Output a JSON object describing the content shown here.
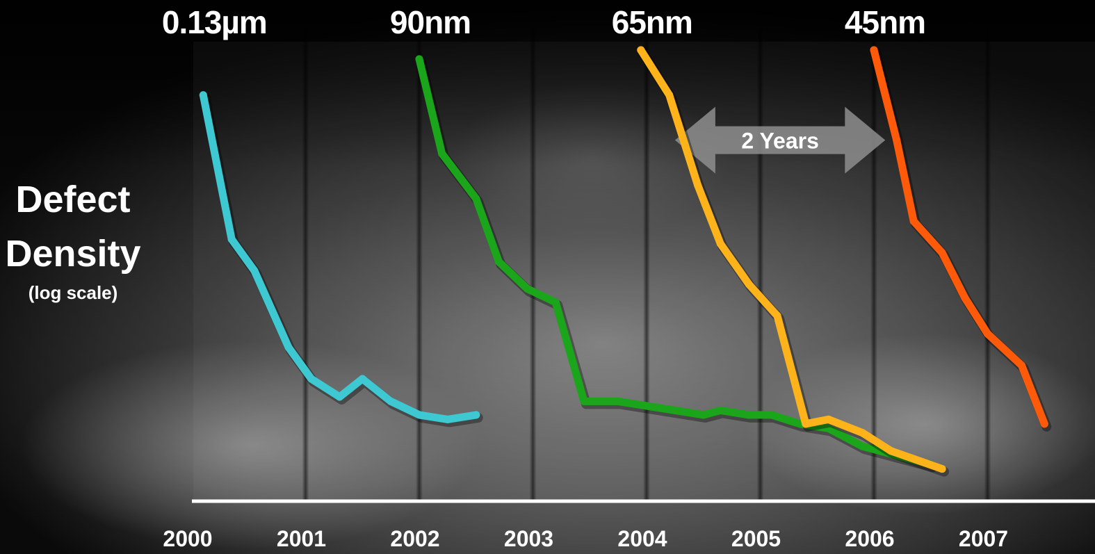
{
  "chart_data": {
    "type": "line",
    "title": "",
    "ylabel": "Defect Density",
    "ylabel_note": "(log scale)",
    "xlabel": "",
    "x_ticks": [
      "2000",
      "2001",
      "2002",
      "2003",
      "2004",
      "2005",
      "2006",
      "2007"
    ],
    "xlim": [
      2000,
      2008
    ],
    "ylim": [
      0,
      100
    ],
    "grid": "vertical",
    "series": [
      {
        "name": "0.13µm",
        "color": "#3ec8d2",
        "points": [
          [
            2000.1,
            90
          ],
          [
            2000.35,
            58
          ],
          [
            2000.55,
            51
          ],
          [
            2000.85,
            34
          ],
          [
            2001.05,
            27
          ],
          [
            2001.3,
            23
          ],
          [
            2001.5,
            27
          ],
          [
            2001.75,
            22
          ],
          [
            2002.0,
            19
          ],
          [
            2002.25,
            18
          ],
          [
            2002.5,
            19
          ]
        ]
      },
      {
        "name": "90nm",
        "color": "#1aa51a",
        "points": [
          [
            2002.0,
            98
          ],
          [
            2002.2,
            77
          ],
          [
            2002.5,
            67
          ],
          [
            2002.7,
            53
          ],
          [
            2002.95,
            47
          ],
          [
            2003.2,
            44
          ],
          [
            2003.45,
            22
          ],
          [
            2003.75,
            22
          ],
          [
            2004.0,
            21
          ],
          [
            2004.25,
            20
          ],
          [
            2004.5,
            19
          ],
          [
            2004.65,
            20
          ],
          [
            2004.9,
            19
          ],
          [
            2005.1,
            19
          ],
          [
            2005.35,
            17
          ],
          [
            2005.6,
            16
          ],
          [
            2005.9,
            12
          ],
          [
            2006.2,
            10
          ],
          [
            2006.5,
            8
          ]
        ]
      },
      {
        "name": "65nm",
        "color": "#ffb31a",
        "points": [
          [
            2003.95,
            100
          ],
          [
            2004.2,
            90
          ],
          [
            2004.45,
            70
          ],
          [
            2004.65,
            57
          ],
          [
            2004.9,
            48
          ],
          [
            2005.15,
            41
          ],
          [
            2005.4,
            17
          ],
          [
            2005.6,
            18
          ],
          [
            2005.9,
            15
          ],
          [
            2006.15,
            11
          ],
          [
            2006.6,
            7
          ]
        ]
      },
      {
        "name": "45nm",
        "color": "#ff5a0a",
        "points": [
          [
            2006.0,
            100
          ],
          [
            2006.2,
            80
          ],
          [
            2006.35,
            62
          ],
          [
            2006.6,
            55
          ],
          [
            2006.8,
            45
          ],
          [
            2007.0,
            37
          ],
          [
            2007.3,
            30
          ],
          [
            2007.5,
            17
          ]
        ]
      }
    ],
    "annotations": [
      {
        "text": "2 Years",
        "type": "double-arrow",
        "x_start": 2004.25,
        "x_end": 2006.1,
        "y": 80
      }
    ]
  }
}
